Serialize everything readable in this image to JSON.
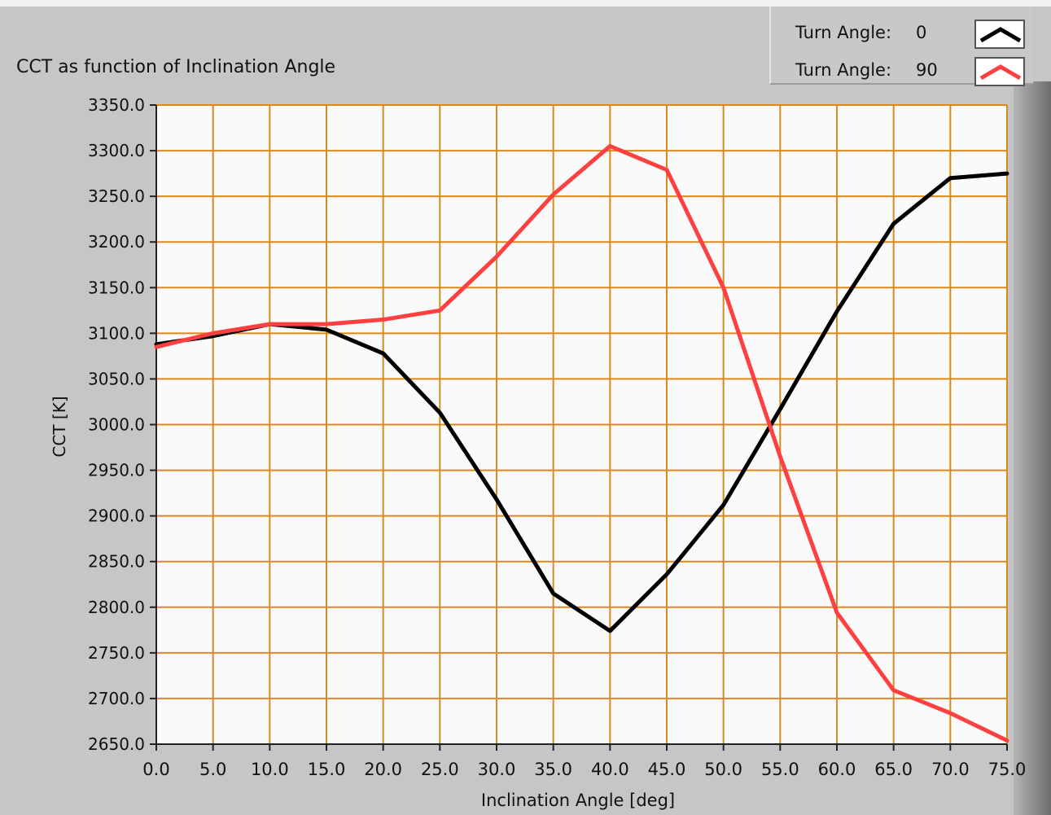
{
  "chart_data": {
    "type": "line",
    "title": "CCT as function of Inclination Angle",
    "xlabel": "Inclination Angle [deg]",
    "ylabel": "CCT [K]",
    "xlim": [
      0,
      75
    ],
    "ylim": [
      2650,
      3350
    ],
    "grid": true,
    "legend_position": "top-right",
    "x_ticks": [
      "0.0",
      "5.0",
      "10.0",
      "15.0",
      "20.0",
      "25.0",
      "30.0",
      "35.0",
      "40.0",
      "45.0",
      "50.0",
      "55.0",
      "60.0",
      "65.0",
      "70.0",
      "75.0"
    ],
    "y_ticks": [
      "3350.0",
      "3300.0",
      "3250.0",
      "3200.0",
      "3150.0",
      "3100.0",
      "3050.0",
      "3000.0",
      "2950.0",
      "2900.0",
      "2850.0",
      "2800.0",
      "2750.0",
      "2700.0",
      "2650.0"
    ],
    "x": [
      0,
      5,
      10,
      15,
      20,
      25,
      30,
      35,
      40,
      45,
      50,
      55,
      60,
      65,
      70,
      75
    ],
    "series": [
      {
        "name": "Turn Angle:",
        "legend_value": "0",
        "color": "#000000",
        "values": [
          3088,
          3097,
          3110,
          3104,
          3078,
          3013,
          2918,
          2815,
          2774,
          2836,
          2912,
          3017,
          3124,
          3220,
          3270,
          3275
        ]
      },
      {
        "name": "Turn Angle:",
        "legend_value": "90",
        "color": "#ff4040",
        "values": [
          3085,
          3100,
          3110,
          3110,
          3115,
          3125,
          3184,
          3252,
          3305,
          3279,
          3150,
          2965,
          2794,
          2709,
          2684,
          2654
        ]
      }
    ]
  },
  "colors": {
    "plot_bg": "#fafafa",
    "grid": "#d98a1c",
    "panel": "#c6c6c6"
  }
}
